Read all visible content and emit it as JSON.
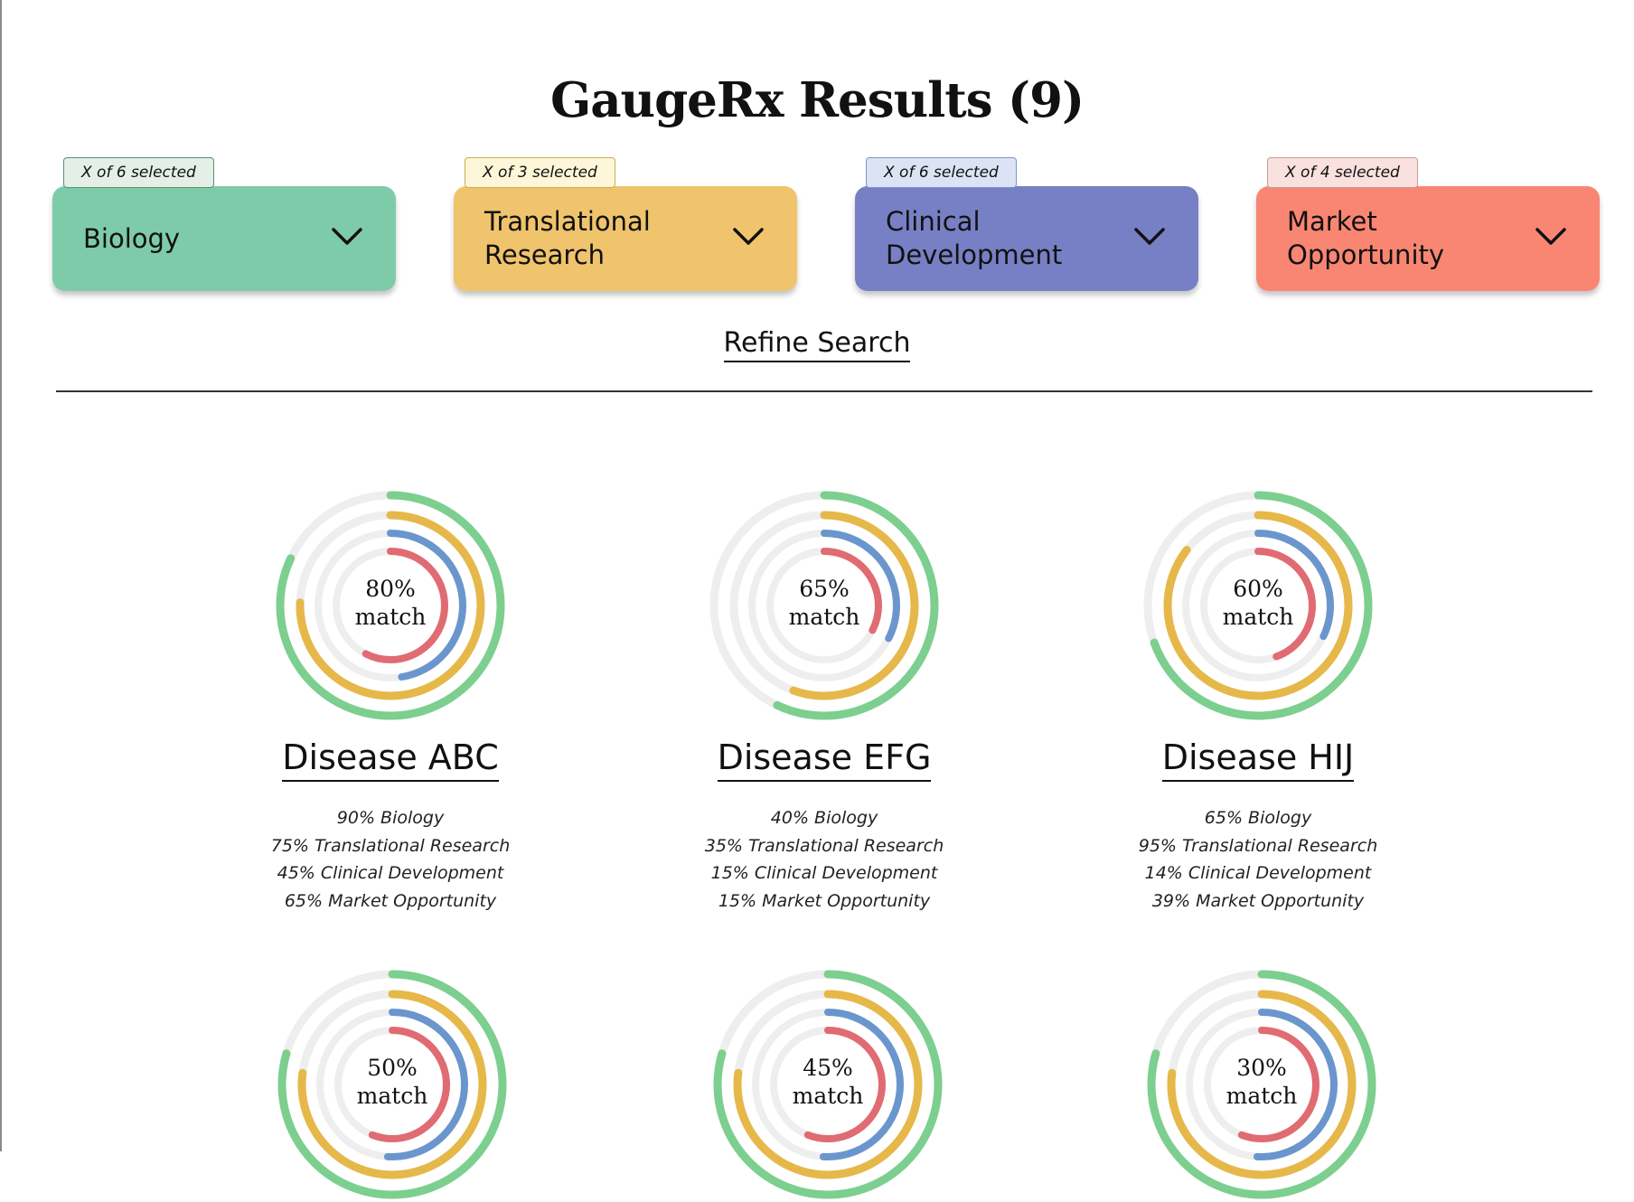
{
  "page": {
    "title": "GaugeRx Results (9)"
  },
  "filters": [
    {
      "badge": "X of 6 selected",
      "label": "Biology",
      "color": "#7ecbaa",
      "badge_bg": "#e3efe7",
      "badge_border": "#5e8f74"
    },
    {
      "badge": "X of 3 selected",
      "label": "Translational Research",
      "color": "#f0c36d",
      "badge_bg": "#fdf6d8",
      "badge_border": "#c8b050"
    },
    {
      "badge": "X of 6 selected",
      "label": "Clinical Development",
      "color": "#7780c4",
      "badge_bg": "#dbe3f4",
      "badge_border": "#7f93c3"
    },
    {
      "badge": "X of 4 selected",
      "label": "Market Opportunity",
      "color": "#f98672",
      "badge_bg": "#f9e1df",
      "badge_border": "#c79a95"
    }
  ],
  "refine": {
    "label": "Refine Search"
  },
  "gauge_colors": {
    "biology": "#7ccf8f",
    "translational": "#e6b84a",
    "clinical": "#6a96cd",
    "market": "#e06b72",
    "track": "#eeeeee"
  },
  "results": [
    {
      "name": "Disease ABC",
      "match_pct": "80%",
      "match_word": "match",
      "metrics": [
        90,
        75,
        45,
        65
      ],
      "lines": [
        "90% Biology",
        "75% Translational Research",
        "45% Clinical Development",
        "65% Market Opportunity"
      ]
    },
    {
      "name": "Disease EFG",
      "match_pct": "65%",
      "match_word": "match",
      "metrics": [
        40,
        35,
        15,
        15
      ],
      "lines": [
        "40% Biology",
        "35% Translational Research",
        "15% Clinical Development",
        "15% Market Opportunity"
      ]
    },
    {
      "name": "Disease HIJ",
      "match_pct": "60%",
      "match_word": "match",
      "metrics": [
        65,
        95,
        14,
        39
      ],
      "lines": [
        "65% Biology",
        "95% Translational Research",
        "14% Clinical Development",
        "39% Market Opportunity"
      ]
    },
    {
      "match_pct": "50%",
      "match_word": "match"
    },
    {
      "match_pct": "45%",
      "match_word": "match"
    },
    {
      "match_pct": "30%",
      "match_word": "match"
    }
  ]
}
